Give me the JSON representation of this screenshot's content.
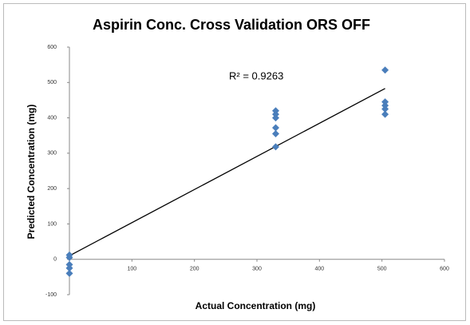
{
  "chart_data": {
    "type": "scatter",
    "title": "Aspirin Conc. Cross Validation ORS OFF",
    "x_label": "Actual Concentration (mg)",
    "y_label": "Predicted Concentration  (mg)",
    "x": [
      0,
      0,
      0,
      0,
      0,
      330,
      330,
      330,
      330,
      330,
      330,
      505,
      505,
      505,
      505,
      505
    ],
    "values": [
      12,
      5,
      -15,
      -25,
      -40,
      420,
      410,
      400,
      372,
      355,
      318,
      535,
      445,
      435,
      425,
      410
    ],
    "color": "#4a7ebb",
    "trendline": {
      "x": [
        0,
        505
      ],
      "y": [
        10,
        483
      ],
      "label": "R² = 0.9263"
    },
    "xlim": [
      0,
      600
    ],
    "xticks": [
      100,
      200,
      300,
      400,
      500,
      600
    ],
    "ylim": [
      -100,
      600
    ],
    "yticks": [
      -100,
      0,
      100,
      200,
      300,
      400,
      500,
      600
    ]
  }
}
